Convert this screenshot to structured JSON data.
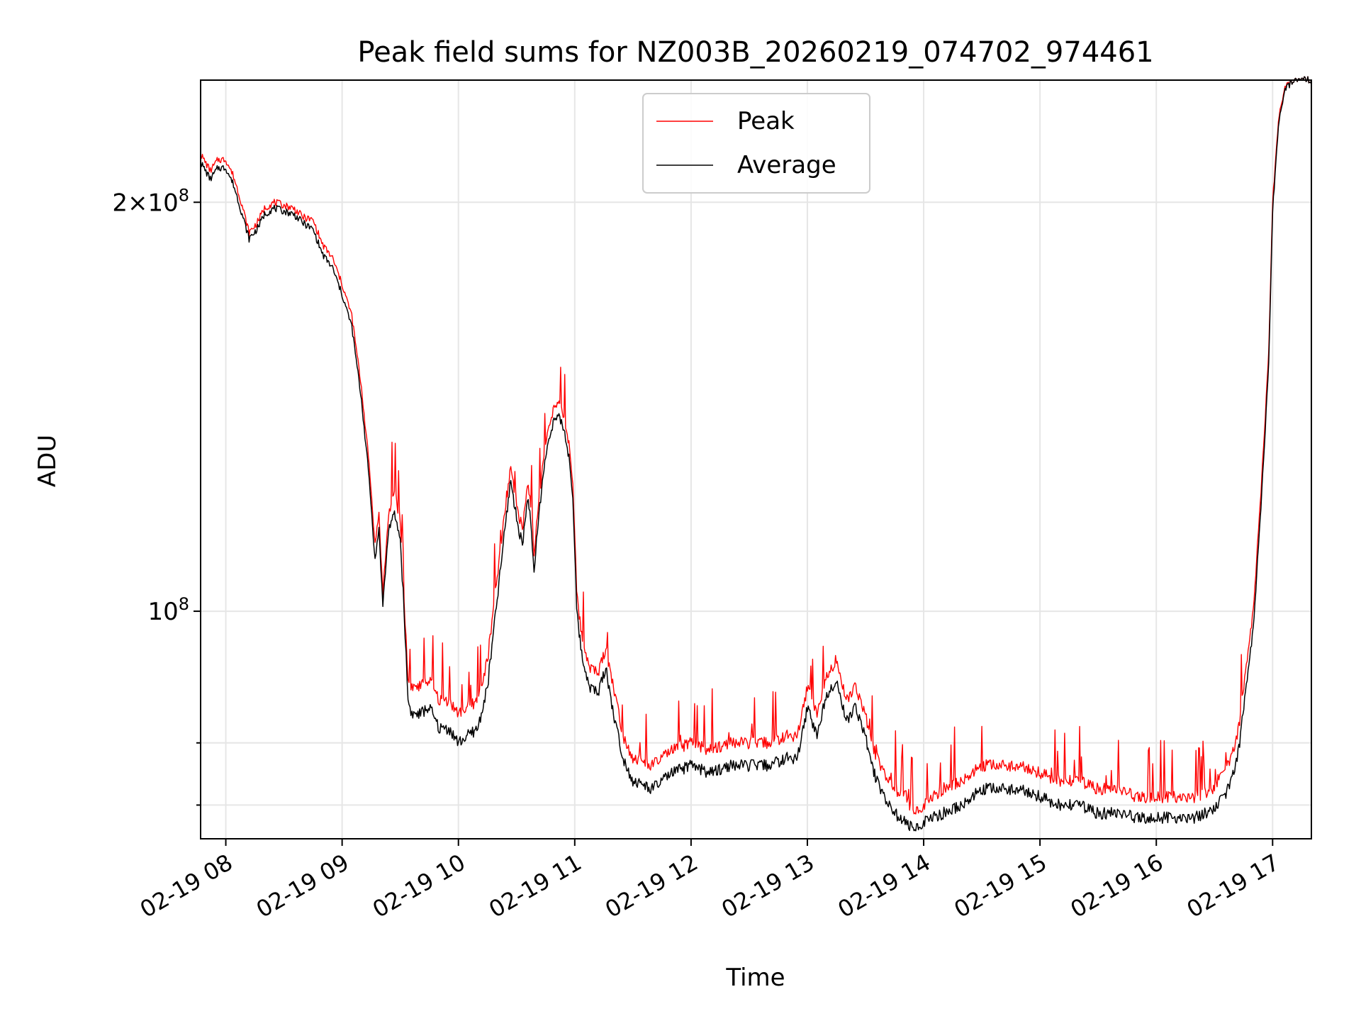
{
  "chart_data": {
    "type": "line",
    "title": "Peak field sums for NZ003B_20260219_074702_974461",
    "xlabel": "Time",
    "ylabel": "ADU",
    "yscale": "log",
    "grid": true,
    "legend_position": "upper center",
    "xlim": [
      "02-19 07:47",
      "02-19 17:20"
    ],
    "ylim": [
      68000000,
      246000000
    ],
    "x_ticks": [
      "02-19 08",
      "02-19 09",
      "02-19 10",
      "02-19 11",
      "02-19 12",
      "02-19 13",
      "02-19 14",
      "02-19 15",
      "02-19 16",
      "02-19 17"
    ],
    "y_ticks": [
      {
        "value": 100000000,
        "base": "10",
        "exp": "8",
        "mant": ""
      },
      {
        "value": 200000000,
        "base": "10",
        "exp": "8",
        "mant": "2"
      }
    ],
    "y_minor_ticks": [
      72000000,
      80000000
    ],
    "series": [
      {
        "name": "Peak",
        "color": "#ff0000",
        "x": [
          "02-19 07:47",
          "02-19 07:52",
          "02-19 07:56",
          "02-19 08:00",
          "02-19 08:04",
          "02-19 08:08",
          "02-19 08:12",
          "02-19 08:16",
          "02-19 08:20",
          "02-19 08:25",
          "02-19 08:30",
          "02-19 08:35",
          "02-19 08:40",
          "02-19 08:45",
          "02-19 08:50",
          "02-19 08:55",
          "02-19 09:00",
          "02-19 09:05",
          "02-19 09:10",
          "02-19 09:14",
          "02-19 09:17",
          "02-19 09:19",
          "02-19 09:21",
          "02-19 09:24",
          "02-19 09:27",
          "02-19 09:30",
          "02-19 09:32",
          "02-19 09:34",
          "02-19 09:36",
          "02-19 09:40",
          "02-19 09:45",
          "02-19 09:50",
          "02-19 09:55",
          "02-19 10:00",
          "02-19 10:05",
          "02-19 10:10",
          "02-19 10:15",
          "02-19 10:20",
          "02-19 10:24",
          "02-19 10:27",
          "02-19 10:30",
          "02-19 10:33",
          "02-19 10:36",
          "02-19 10:39",
          "02-19 10:42",
          "02-19 10:45",
          "02-19 10:48",
          "02-19 10:51",
          "02-19 10:54",
          "02-19 10:57",
          "02-19 10:59",
          "02-19 11:01",
          "02-19 11:04",
          "02-19 11:08",
          "02-19 11:12",
          "02-19 11:16",
          "02-19 11:20",
          "02-19 11:25",
          "02-19 11:30",
          "02-19 11:40",
          "02-19 11:50",
          "02-19 12:00",
          "02-19 12:10",
          "02-19 12:20",
          "02-19 12:30",
          "02-19 12:40",
          "02-19 12:50",
          "02-19 12:55",
          "02-19 13:00",
          "02-19 13:05",
          "02-19 13:10",
          "02-19 13:15",
          "02-19 13:20",
          "02-19 13:25",
          "02-19 13:30",
          "02-19 13:33",
          "02-19 13:36",
          "02-19 13:40",
          "02-19 13:45",
          "02-19 13:50",
          "02-19 13:55",
          "02-19 14:00",
          "02-19 14:10",
          "02-19 14:20",
          "02-19 14:30",
          "02-19 14:40",
          "02-19 14:50",
          "02-19 15:00",
          "02-19 15:10",
          "02-19 15:20",
          "02-19 15:30",
          "02-19 15:40",
          "02-19 15:50",
          "02-19 16:00",
          "02-19 16:10",
          "02-19 16:20",
          "02-19 16:30",
          "02-19 16:35",
          "02-19 16:40",
          "02-19 16:43",
          "02-19 16:46",
          "02-19 16:50",
          "02-19 16:54",
          "02-19 16:58",
          "02-19 17:00",
          "02-19 17:03",
          "02-19 17:06",
          "02-19 17:10",
          "02-19 17:15",
          "02-19 17:20"
        ],
        "values": [
          217000000,
          211000000,
          215000000,
          215000000,
          209000000,
          200000000,
          190000000,
          193000000,
          198000000,
          200000000,
          199000000,
          198000000,
          195000000,
          194000000,
          186000000,
          182000000,
          174000000,
          165000000,
          146000000,
          128000000,
          112000000,
          118000000,
          103000000,
          118000000,
          122000000,
          116000000,
          102000000,
          89000000,
          88000000,
          88000000,
          89000000,
          86000000,
          86000000,
          84000000,
          85000000,
          86000000,
          92000000,
          106000000,
          118000000,
          128000000,
          120000000,
          115000000,
          125000000,
          110000000,
          123000000,
          133000000,
          140000000,
          142000000,
          140000000,
          133000000,
          125000000,
          103000000,
          95000000,
          91000000,
          90000000,
          94000000,
          88000000,
          81000000,
          78000000,
          77000000,
          79000000,
          80000000,
          79000000,
          80000000,
          80000000,
          80000000,
          81000000,
          81000000,
          88000000,
          84000000,
          90000000,
          92000000,
          86000000,
          88000000,
          84000000,
          80000000,
          78000000,
          76000000,
          74000000,
          73000000,
          71000000,
          72000000,
          74000000,
          75000000,
          77000000,
          77000000,
          77000000,
          76000000,
          75000000,
          75000000,
          74000000,
          74000000,
          73000000,
          73000000,
          73000000,
          73000000,
          74000000,
          76000000,
          79000000,
          83000000,
          90000000,
          100000000,
          122000000,
          155000000,
          200000000,
          230000000,
          243000000,
          245000000,
          246000000,
          246000000
        ]
      },
      {
        "name": "Average",
        "color": "#000000",
        "x": [
          "02-19 07:47",
          "02-19 07:52",
          "02-19 07:56",
          "02-19 08:00",
          "02-19 08:04",
          "02-19 08:08",
          "02-19 08:12",
          "02-19 08:16",
          "02-19 08:20",
          "02-19 08:25",
          "02-19 08:30",
          "02-19 08:35",
          "02-19 08:40",
          "02-19 08:45",
          "02-19 08:50",
          "02-19 08:55",
          "02-19 09:00",
          "02-19 09:05",
          "02-19 09:10",
          "02-19 09:14",
          "02-19 09:17",
          "02-19 09:19",
          "02-19 09:21",
          "02-19 09:24",
          "02-19 09:27",
          "02-19 09:30",
          "02-19 09:32",
          "02-19 09:34",
          "02-19 09:36",
          "02-19 09:40",
          "02-19 09:45",
          "02-19 09:50",
          "02-19 09:55",
          "02-19 10:00",
          "02-19 10:05",
          "02-19 10:10",
          "02-19 10:15",
          "02-19 10:20",
          "02-19 10:24",
          "02-19 10:27",
          "02-19 10:30",
          "02-19 10:33",
          "02-19 10:36",
          "02-19 10:39",
          "02-19 10:42",
          "02-19 10:45",
          "02-19 10:48",
          "02-19 10:51",
          "02-19 10:54",
          "02-19 10:57",
          "02-19 10:59",
          "02-19 11:01",
          "02-19 11:04",
          "02-19 11:08",
          "02-19 11:12",
          "02-19 11:16",
          "02-19 11:20",
          "02-19 11:25",
          "02-19 11:30",
          "02-19 11:40",
          "02-19 11:50",
          "02-19 12:00",
          "02-19 12:10",
          "02-19 12:20",
          "02-19 12:30",
          "02-19 12:40",
          "02-19 12:50",
          "02-19 12:55",
          "02-19 13:00",
          "02-19 13:05",
          "02-19 13:10",
          "02-19 13:15",
          "02-19 13:20",
          "02-19 13:25",
          "02-19 13:30",
          "02-19 13:33",
          "02-19 13:36",
          "02-19 13:40",
          "02-19 13:45",
          "02-19 13:50",
          "02-19 13:55",
          "02-19 14:00",
          "02-19 14:10",
          "02-19 14:20",
          "02-19 14:30",
          "02-19 14:40",
          "02-19 14:50",
          "02-19 15:00",
          "02-19 15:10",
          "02-19 15:20",
          "02-19 15:30",
          "02-19 15:40",
          "02-19 15:50",
          "02-19 16:00",
          "02-19 16:10",
          "02-19 16:20",
          "02-19 16:30",
          "02-19 16:35",
          "02-19 16:40",
          "02-19 16:43",
          "02-19 16:46",
          "02-19 16:50",
          "02-19 16:54",
          "02-19 16:58",
          "02-19 17:00",
          "02-19 17:03",
          "02-19 17:06",
          "02-19 17:10",
          "02-19 17:15",
          "02-19 17:20"
        ],
        "values": [
          214000000,
          208000000,
          212000000,
          212000000,
          206000000,
          197000000,
          188000000,
          191000000,
          196000000,
          198000000,
          197000000,
          196000000,
          193000000,
          191000000,
          183000000,
          179000000,
          171000000,
          162000000,
          143000000,
          125000000,
          109000000,
          115000000,
          101000000,
          115000000,
          118000000,
          113000000,
          100000000,
          86000000,
          84000000,
          84000000,
          85000000,
          82000000,
          82000000,
          80000000,
          81000000,
          82000000,
          88000000,
          102000000,
          115000000,
          125000000,
          117000000,
          112000000,
          122000000,
          107000000,
          120000000,
          130000000,
          137000000,
          139000000,
          137000000,
          130000000,
          122000000,
          100000000,
          92000000,
          88000000,
          87000000,
          91000000,
          84000000,
          78000000,
          75000000,
          74000000,
          76000000,
          77000000,
          76000000,
          77000000,
          77000000,
          77000000,
          78000000,
          78000000,
          85000000,
          81000000,
          87000000,
          89000000,
          83000000,
          85000000,
          81000000,
          77000000,
          75000000,
          73000000,
          71000000,
          70000000,
          69000000,
          70000000,
          71000000,
          72000000,
          74000000,
          74000000,
          74000000,
          73000000,
          72000000,
          72000000,
          71000000,
          71000000,
          70500000,
          70500000,
          70500000,
          70500000,
          71500000,
          73000000,
          76000000,
          80000000,
          87000000,
          97000000,
          119000000,
          152000000,
          197000000,
          228000000,
          242000000,
          245000000,
          246000000,
          246000000
        ]
      }
    ]
  }
}
